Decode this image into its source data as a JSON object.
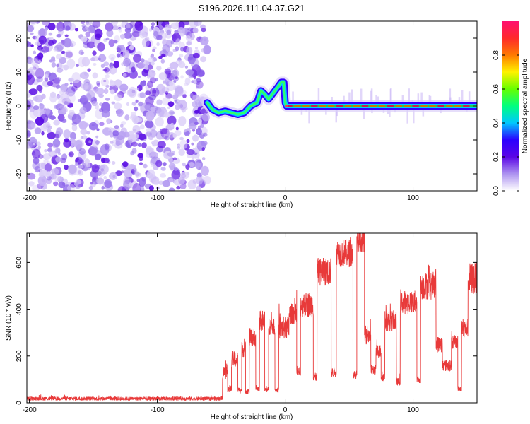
{
  "title": "S196.2026.111.04.37.G21",
  "chart_data": [
    {
      "type": "heatmap",
      "name": "spectrogram",
      "xlabel": "Height of straight line (km)",
      "ylabel": "Frequency (Hz)",
      "xlim": [
        -202,
        150
      ],
      "ylim": [
        -25,
        25
      ],
      "xticks": [
        -200,
        -100,
        0,
        100
      ],
      "yticks": [
        20,
        10,
        0,
        -10,
        -20
      ],
      "noise_region": [
        -202,
        -61
      ],
      "signal_track": {
        "x": [
          -61,
          -57,
          -52,
          -47,
          -42,
          -37,
          -32,
          -27,
          -22,
          -19,
          -16,
          -13,
          -10,
          -7,
          -5,
          -3,
          -1,
          0,
          1,
          150
        ],
        "y": [
          1,
          -1,
          -2,
          -1.5,
          -2,
          -2.5,
          -2,
          0,
          1,
          4.5,
          3.5,
          2,
          3.5,
          5,
          6,
          7,
          7,
          1,
          0,
          0
        ]
      },
      "colorbar": {
        "label": "Normalized spectral amplitude",
        "range": [
          0.0,
          1.0
        ],
        "ticks": [
          0.0,
          0.2,
          0.4,
          0.6,
          0.8
        ],
        "tick_labels": [
          "0.0",
          "0.2",
          "0.4",
          "0.6",
          "0.8"
        ],
        "colors": [
          "#ffffff",
          "#ad93f0",
          "#5b05e6",
          "#2b00ff",
          "#00c8ff",
          "#00ff7f",
          "#66ff00",
          "#fff200",
          "#ff7a00",
          "#ff2a2a",
          "#ff1070"
        ]
      }
    },
    {
      "type": "line",
      "name": "snr",
      "xlabel": "Height of straight line (km)",
      "ylabel": "SNR (10 * v/v)",
      "xlim": [
        -202,
        150
      ],
      "ylim": [
        0,
        725
      ],
      "xticks": [
        -200,
        -100,
        0,
        100
      ],
      "yticks": [
        0,
        200,
        400,
        600
      ],
      "color": "#e83a3a",
      "segments": [
        {
          "x0": -202,
          "x1": -49,
          "base": 18,
          "noise": 8
        },
        {
          "x0": -49,
          "x1": -45,
          "base": 130,
          "noise": 30
        },
        {
          "x0": -45,
          "x1": -42,
          "base": 60,
          "noise": 15
        },
        {
          "x0": -42,
          "x1": -37,
          "base": 185,
          "noise": 35
        },
        {
          "x0": -37,
          "x1": -34,
          "base": 55,
          "noise": 12
        },
        {
          "x0": -34,
          "x1": -31,
          "base": 230,
          "noise": 35
        },
        {
          "x0": -31,
          "x1": -28,
          "base": 50,
          "noise": 12
        },
        {
          "x0": -28,
          "x1": -23,
          "base": 280,
          "noise": 40
        },
        {
          "x0": -23,
          "x1": -20,
          "base": 60,
          "noise": 12
        },
        {
          "x0": -20,
          "x1": -16,
          "base": 350,
          "noise": 45
        },
        {
          "x0": -16,
          "x1": -13,
          "base": 55,
          "noise": 12
        },
        {
          "x0": -13,
          "x1": -8,
          "base": 330,
          "noise": 40
        },
        {
          "x0": -8,
          "x1": -5,
          "base": 55,
          "noise": 12
        },
        {
          "x0": -5,
          "x1": 3,
          "base": 320,
          "noise": 50
        },
        {
          "x0": 3,
          "x1": 9,
          "base": 380,
          "noise": 45
        },
        {
          "x0": 9,
          "x1": 12,
          "base": 130,
          "noise": 20
        },
        {
          "x0": 12,
          "x1": 22,
          "base": 420,
          "noise": 55
        },
        {
          "x0": 22,
          "x1": 25,
          "base": 110,
          "noise": 18
        },
        {
          "x0": 25,
          "x1": 36,
          "base": 560,
          "noise": 60
        },
        {
          "x0": 36,
          "x1": 40,
          "base": 130,
          "noise": 20
        },
        {
          "x0": 40,
          "x1": 53,
          "base": 640,
          "noise": 60
        },
        {
          "x0": 53,
          "x1": 56,
          "base": 120,
          "noise": 18
        },
        {
          "x0": 56,
          "x1": 62,
          "base": 690,
          "noise": 45
        },
        {
          "x0": 62,
          "x1": 67,
          "base": 290,
          "noise": 40
        },
        {
          "x0": 67,
          "x1": 71,
          "base": 140,
          "noise": 22
        },
        {
          "x0": 71,
          "x1": 75,
          "base": 220,
          "noise": 30
        },
        {
          "x0": 75,
          "x1": 78,
          "base": 110,
          "noise": 18
        },
        {
          "x0": 78,
          "x1": 87,
          "base": 350,
          "noise": 45
        },
        {
          "x0": 87,
          "x1": 90,
          "base": 90,
          "noise": 16
        },
        {
          "x0": 90,
          "x1": 103,
          "base": 430,
          "noise": 50
        },
        {
          "x0": 103,
          "x1": 106,
          "base": 100,
          "noise": 16
        },
        {
          "x0": 106,
          "x1": 118,
          "base": 500,
          "noise": 60
        },
        {
          "x0": 118,
          "x1": 123,
          "base": 250,
          "noise": 35
        },
        {
          "x0": 123,
          "x1": 130,
          "base": 160,
          "noise": 25
        },
        {
          "x0": 130,
          "x1": 135,
          "base": 260,
          "noise": 30
        },
        {
          "x0": 135,
          "x1": 138,
          "base": 60,
          "noise": 12
        },
        {
          "x0": 138,
          "x1": 143,
          "base": 320,
          "noise": 40
        },
        {
          "x0": 143,
          "x1": 150,
          "base": 530,
          "noise": 70
        }
      ]
    }
  ]
}
